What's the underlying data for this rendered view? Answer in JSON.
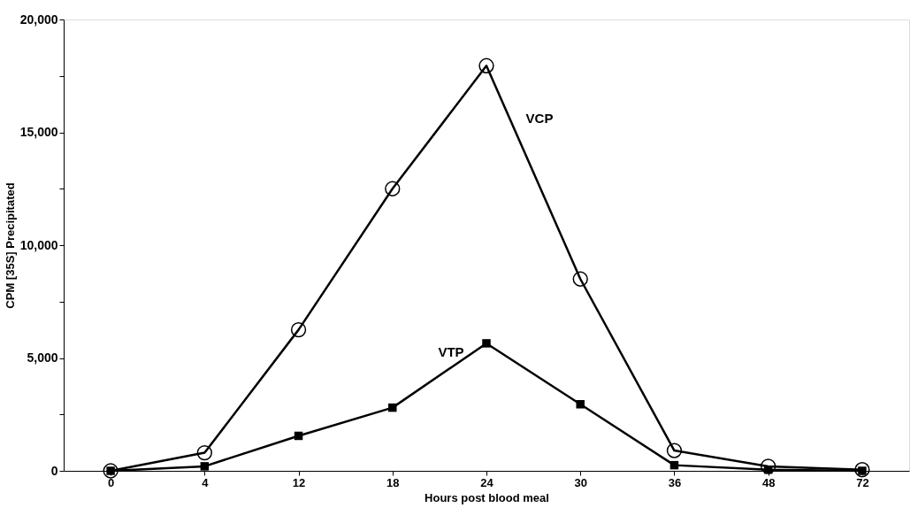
{
  "chart_data": {
    "type": "line",
    "xlabel": "Hours post blood meal",
    "ylabel": "CPM [35S] Precipitated",
    "categories": [
      "0",
      "4",
      "12",
      "18",
      "24",
      "30",
      "36",
      "48",
      "72"
    ],
    "ylim": [
      0,
      20000
    ],
    "yticks": [
      {
        "value": 0,
        "label": "0"
      },
      {
        "value": 2500,
        "label": null
      },
      {
        "value": 5000,
        "label": "5,000"
      },
      {
        "value": 7500,
        "label": null
      },
      {
        "value": 10000,
        "label": "10,000"
      },
      {
        "value": 12500,
        "label": null
      },
      {
        "value": 15000,
        "label": "15,000"
      },
      {
        "value": 17500,
        "label": null
      },
      {
        "value": 20000,
        "label": "20,000"
      }
    ],
    "grid": false,
    "line_style": "solid",
    "series": [
      {
        "name": "VCP",
        "color": "#000000",
        "marker": "circle",
        "values": [
          0,
          800,
          6250,
          12500,
          17950,
          8500,
          900,
          200,
          50
        ]
      },
      {
        "name": "VTP",
        "color": "#000000",
        "marker": "square",
        "values": [
          0,
          200,
          1550,
          2800,
          5650,
          2950,
          250,
          50,
          0
        ]
      }
    ]
  }
}
